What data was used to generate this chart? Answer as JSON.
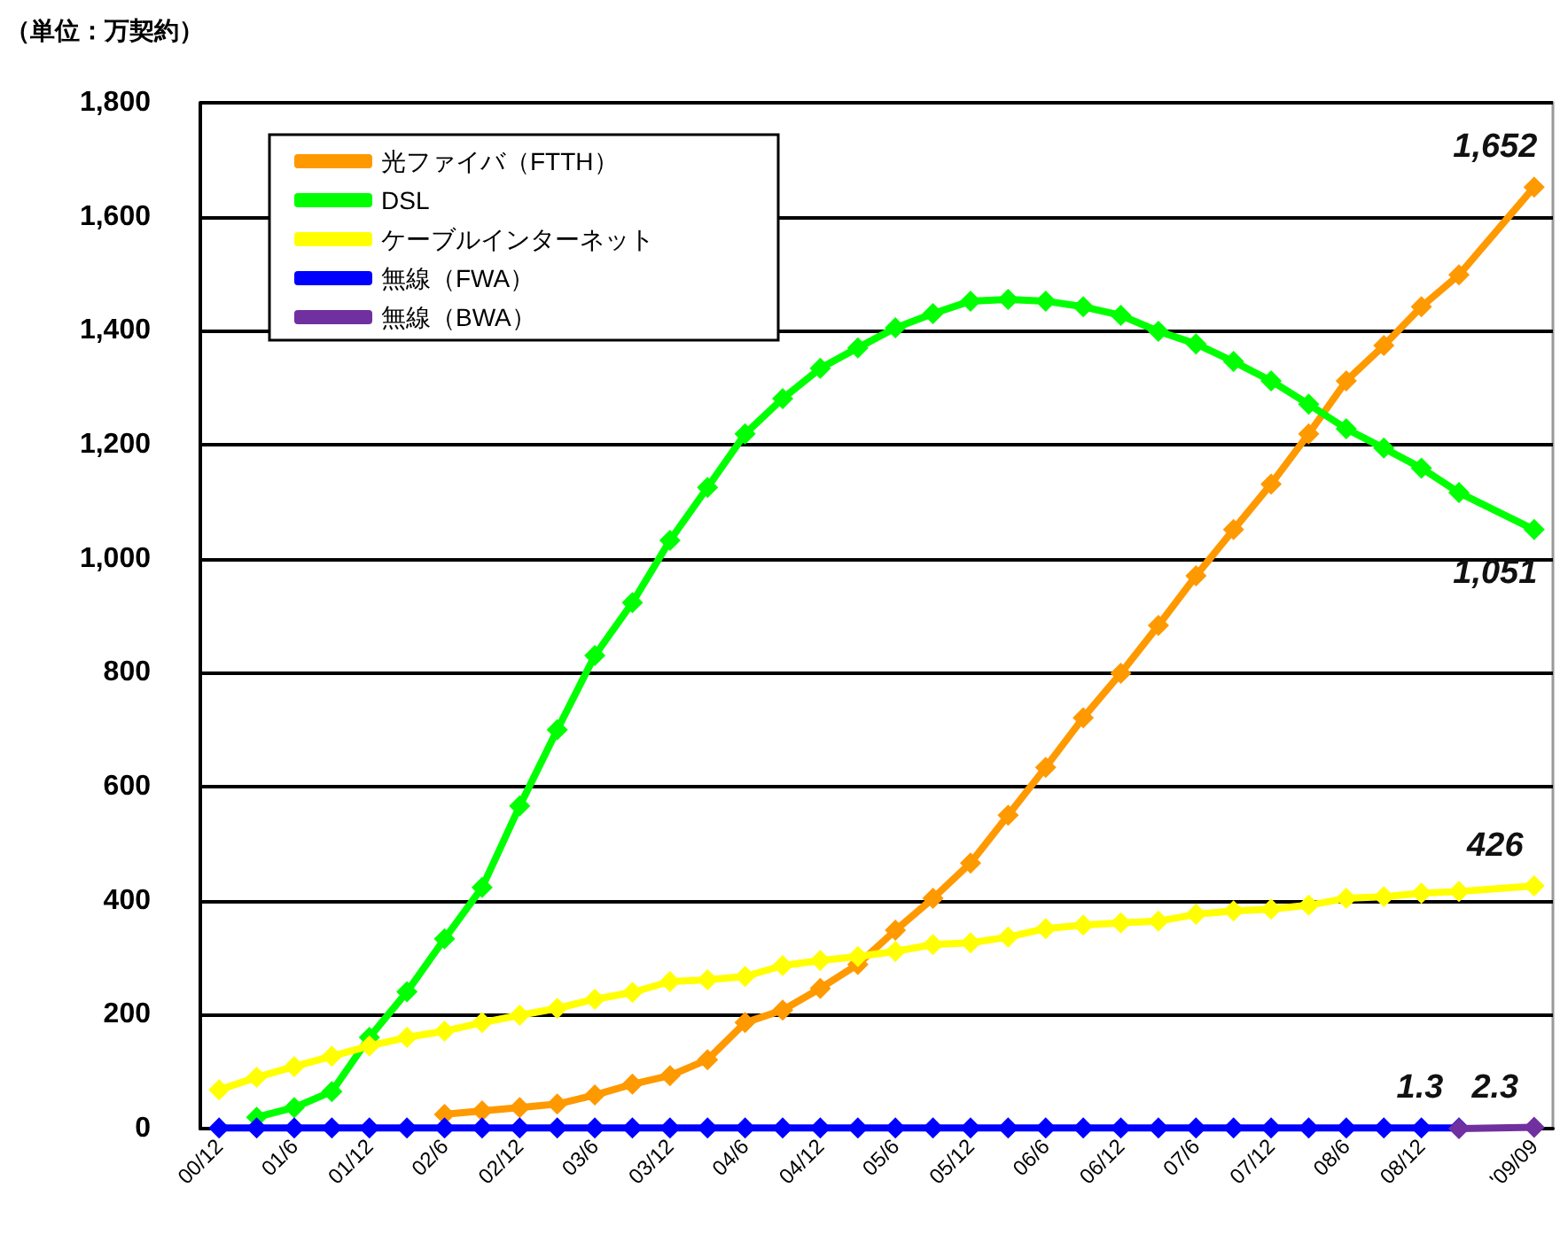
{
  "chart_data": {
    "type": "line",
    "ylabel": "（単位：万契約）",
    "categories": [
      "00/12",
      null,
      "01/6",
      null,
      "01/12",
      null,
      "02/6",
      null,
      "02/12",
      null,
      "03/6",
      null,
      "03/12",
      null,
      "04/6",
      null,
      "04/12",
      null,
      "05/6",
      null,
      "05/12",
      null,
      "06/6",
      null,
      "06/12",
      null,
      "07/6",
      null,
      "07/12",
      null,
      "08/6",
      null,
      "08/12",
      null,
      null,
      "'09/09"
    ],
    "series": [
      {
        "name": "光ファイバ（FTTH）",
        "color": "#ff9900",
        "values": [
          null,
          null,
          null,
          null,
          null,
          null,
          25,
          31,
          37,
          43,
          59,
          78,
          93,
          121,
          186,
          208,
          246,
          288,
          348,
          404,
          466,
          550,
          634,
          721,
          799,
          883,
          970,
          1051,
          1131,
          1219,
          1312,
          1374,
          1442,
          1498,
          null,
          1652
        ],
        "value_labels": [
          null,
          null,
          null,
          null,
          null,
          null,
          null,
          null,
          null,
          null,
          null,
          null,
          null,
          null,
          null,
          null,
          null,
          null,
          null,
          null,
          null,
          null,
          null,
          null,
          null,
          null,
          null,
          null,
          null,
          null,
          null,
          null,
          null,
          null,
          null,
          "1,652"
        ]
      },
      {
        "name": "DSL",
        "color": "#00ff00",
        "values": [
          null,
          20,
          37,
          65,
          160,
          240,
          333,
          423,
          566,
          700,
          830,
          923,
          1032,
          1125,
          1219,
          1281,
          1334,
          1370,
          1405,
          1430,
          1452,
          1455,
          1452,
          1442,
          1427,
          1399,
          1377,
          1346,
          1312,
          1271,
          1228,
          1194,
          1159,
          1116,
          null,
          1051
        ],
        "value_labels": [
          null,
          null,
          null,
          null,
          null,
          null,
          null,
          null,
          null,
          null,
          null,
          null,
          null,
          null,
          null,
          null,
          null,
          null,
          null,
          null,
          null,
          null,
          null,
          null,
          null,
          null,
          null,
          null,
          null,
          null,
          null,
          null,
          null,
          null,
          null,
          "1,051"
        ]
      },
      {
        "name": "ケーブルインターネット",
        "color": "#ffff00",
        "values": [
          68,
          90,
          109,
          127,
          145,
          160,
          171,
          186,
          199,
          211,
          227,
          239,
          258,
          261,
          267,
          286,
          295,
          302,
          311,
          323,
          326,
          336,
          351,
          357,
          361,
          364,
          376,
          382,
          385,
          392,
          404,
          407,
          413,
          416,
          null,
          426
        ],
        "value_labels": [
          null,
          null,
          null,
          null,
          null,
          null,
          null,
          null,
          null,
          null,
          null,
          null,
          null,
          null,
          null,
          null,
          null,
          null,
          null,
          null,
          null,
          null,
          null,
          null,
          null,
          null,
          null,
          null,
          null,
          null,
          null,
          null,
          null,
          null,
          null,
          "426"
        ]
      },
      {
        "name": "無線（FWA）",
        "color": "#0000ff",
        "values": [
          1,
          1,
          1,
          1,
          1,
          1,
          1,
          1,
          1,
          1,
          1,
          1,
          1,
          1,
          1,
          1,
          1,
          1,
          1,
          1,
          1,
          1,
          1,
          1,
          1,
          1,
          1,
          1,
          1,
          1,
          1,
          1,
          1,
          1.3,
          null,
          null
        ],
        "value_labels": [
          null,
          null,
          null,
          null,
          null,
          null,
          null,
          null,
          null,
          null,
          null,
          null,
          null,
          null,
          null,
          null,
          null,
          null,
          null,
          null,
          null,
          null,
          null,
          null,
          null,
          null,
          null,
          null,
          null,
          null,
          null,
          null,
          null,
          "1.3",
          null,
          null
        ]
      },
      {
        "name": "無線（BWA）",
        "color": "#7030a0",
        "values": [
          null,
          null,
          null,
          null,
          null,
          null,
          null,
          null,
          null,
          null,
          null,
          null,
          null,
          null,
          null,
          null,
          null,
          null,
          null,
          null,
          null,
          null,
          null,
          null,
          null,
          null,
          null,
          null,
          null,
          null,
          null,
          null,
          null,
          0,
          null,
          2.3
        ],
        "value_labels": [
          null,
          null,
          null,
          null,
          null,
          null,
          null,
          null,
          null,
          null,
          null,
          null,
          null,
          null,
          null,
          null,
          null,
          null,
          null,
          null,
          null,
          null,
          null,
          null,
          null,
          null,
          null,
          null,
          null,
          null,
          null,
          null,
          null,
          null,
          null,
          "2.3"
        ]
      }
    ],
    "ylim": [
      0,
      1800
    ],
    "yticks": [
      0,
      200,
      400,
      600,
      800,
      {
        "value": 1000,
        "label": "1,000"
      },
      {
        "value": 1200,
        "label": "1,200"
      },
      {
        "value": 1400,
        "label": "1,400"
      },
      {
        "value": 1600,
        "label": "1,600"
      },
      {
        "value": 1800,
        "label": "1,800"
      }
    ],
    "grid": "y",
    "legend": "top left",
    "marker": "diamond",
    "line_style": "solid"
  }
}
